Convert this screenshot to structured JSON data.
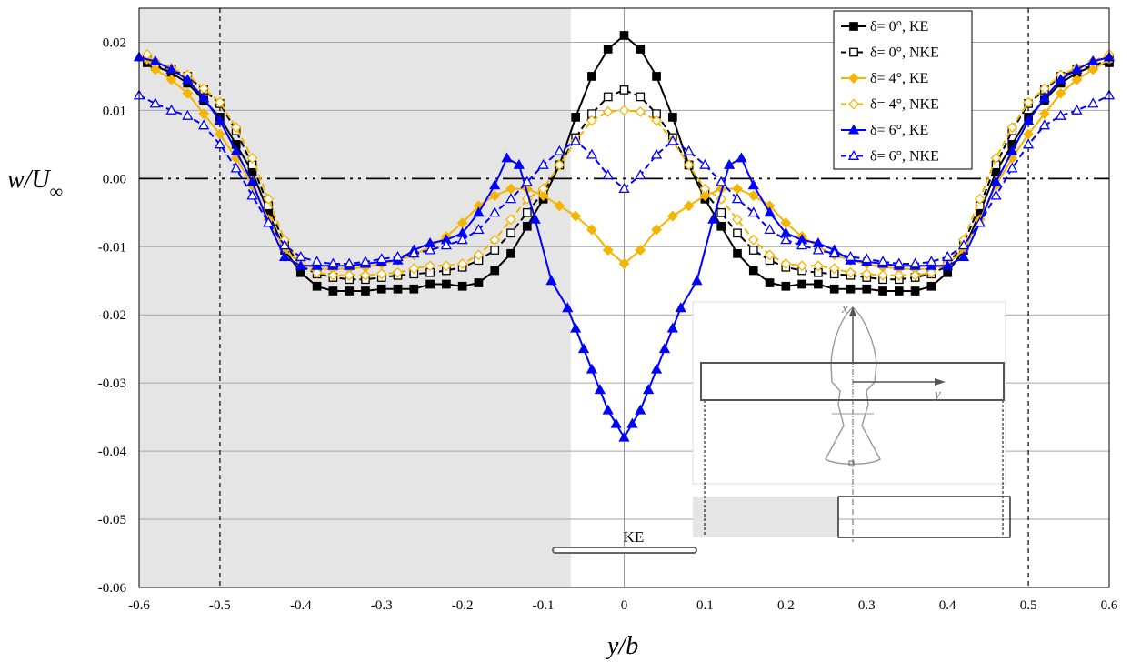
{
  "chart_data": {
    "type": "line",
    "xlabel": "y/b",
    "ylabel": "w/U∞",
    "xlim": [
      -0.6,
      0.6
    ],
    "ylim": [
      -0.06,
      0.025
    ],
    "x_ticks": [
      "-0.6",
      "-0.5",
      "-0.4",
      "-0.3",
      "-0.2",
      "-0.1",
      "0",
      "0.1",
      "0.2",
      "0.3",
      "0.4",
      "0.5",
      "0.6"
    ],
    "y_ticks": [
      "0.02",
      "0.01",
      "0.00",
      "-0.01",
      "-0.02",
      "-0.03",
      "-0.04",
      "-0.05",
      "-0.06"
    ],
    "grid": "horizontal",
    "legend_position": "top-right",
    "shaded_region": [
      -0.6,
      -0.066
    ],
    "vertical_lines": [
      -0.5,
      0.5
    ],
    "annotation": "KE",
    "inset_axis_labels": [
      "x",
      "y"
    ],
    "series": [
      {
        "name": "δ= 0°, KE",
        "color": "#000000",
        "line_style": "solid",
        "marker": "filled-square",
        "x": [
          -0.59,
          -0.58,
          -0.56,
          -0.54,
          -0.52,
          -0.5,
          -0.48,
          -0.46,
          -0.44,
          -0.42,
          -0.4,
          -0.38,
          -0.36,
          -0.34,
          -0.32,
          -0.3,
          -0.28,
          -0.26,
          -0.24,
          -0.22,
          -0.2,
          -0.18,
          -0.16,
          -0.14,
          -0.12,
          -0.1,
          -0.08,
          -0.06,
          -0.04,
          -0.02,
          0,
          0.02,
          0.04,
          0.06,
          0.08,
          0.1,
          0.12,
          0.14,
          0.16,
          0.18,
          0.2,
          0.22,
          0.24,
          0.26,
          0.28,
          0.3,
          0.32,
          0.34,
          0.36,
          0.38,
          0.4,
          0.42,
          0.44,
          0.46,
          0.48,
          0.5,
          0.52,
          0.54,
          0.56,
          0.58,
          0.6
        ],
        "y": [
          0.017,
          0.0165,
          0.0155,
          0.014,
          0.0115,
          0.009,
          0.005,
          0.001,
          -0.005,
          -0.0105,
          -0.0138,
          -0.0158,
          -0.0165,
          -0.0165,
          -0.0165,
          -0.0162,
          -0.0162,
          -0.0162,
          -0.0155,
          -0.0155,
          -0.0158,
          -0.0153,
          -0.0135,
          -0.011,
          -0.007,
          -0.003,
          0.002,
          0.009,
          0.015,
          0.019,
          0.021,
          0.019,
          0.015,
          0.009,
          0.002,
          -0.003,
          -0.007,
          -0.011,
          -0.0135,
          -0.0153,
          -0.0158,
          -0.0155,
          -0.0155,
          -0.0162,
          -0.0162,
          -0.0162,
          -0.0165,
          -0.0165,
          -0.0165,
          -0.0158,
          -0.0138,
          -0.0105,
          -0.005,
          0.001,
          0.005,
          0.009,
          0.0115,
          0.014,
          0.0155,
          0.0165,
          0.017
        ]
      },
      {
        "name": "δ= 0°, NKE",
        "color": "#000000",
        "line_style": "dashed",
        "marker": "open-square",
        "x": [
          -0.59,
          -0.58,
          -0.56,
          -0.54,
          -0.52,
          -0.5,
          -0.48,
          -0.46,
          -0.44,
          -0.42,
          -0.4,
          -0.38,
          -0.36,
          -0.34,
          -0.32,
          -0.3,
          -0.28,
          -0.26,
          -0.24,
          -0.22,
          -0.2,
          -0.18,
          -0.16,
          -0.14,
          -0.12,
          -0.1,
          -0.08,
          -0.06,
          -0.04,
          -0.02,
          0,
          0.02,
          0.04,
          0.06,
          0.08,
          0.1,
          0.12,
          0.14,
          0.16,
          0.18,
          0.2,
          0.22,
          0.24,
          0.26,
          0.28,
          0.3,
          0.32,
          0.34,
          0.36,
          0.38,
          0.4,
          0.42,
          0.44,
          0.46,
          0.48,
          0.5,
          0.52,
          0.54,
          0.56,
          0.58,
          0.6
        ],
        "y": [
          0.0175,
          0.0165,
          0.016,
          0.015,
          0.013,
          0.011,
          0.007,
          0.002,
          -0.004,
          -0.0095,
          -0.0128,
          -0.014,
          -0.0145,
          -0.0148,
          -0.0148,
          -0.0145,
          -0.0142,
          -0.014,
          -0.0138,
          -0.0135,
          -0.013,
          -0.012,
          -0.0105,
          -0.008,
          -0.005,
          -0.002,
          0.002,
          0.006,
          0.0095,
          0.012,
          0.013,
          0.012,
          0.0095,
          0.006,
          0.002,
          -0.002,
          -0.005,
          -0.008,
          -0.0105,
          -0.012,
          -0.013,
          -0.0135,
          -0.0138,
          -0.014,
          -0.0142,
          -0.0145,
          -0.0148,
          -0.0148,
          -0.0145,
          -0.014,
          -0.0128,
          -0.0095,
          -0.004,
          0.002,
          0.007,
          0.011,
          0.013,
          0.015,
          0.016,
          0.0165,
          0.0175
        ]
      },
      {
        "name": "δ= 4°, KE",
        "color": "#f4b400",
        "line_style": "solid",
        "marker": "filled-diamond",
        "x": [
          -0.59,
          -0.58,
          -0.56,
          -0.54,
          -0.52,
          -0.5,
          -0.48,
          -0.46,
          -0.44,
          -0.42,
          -0.4,
          -0.38,
          -0.36,
          -0.34,
          -0.32,
          -0.3,
          -0.28,
          -0.26,
          -0.24,
          -0.22,
          -0.2,
          -0.18,
          -0.16,
          -0.14,
          -0.12,
          -0.1,
          -0.08,
          -0.06,
          -0.04,
          -0.02,
          0,
          0.02,
          0.04,
          0.06,
          0.08,
          0.1,
          0.12,
          0.14,
          0.16,
          0.18,
          0.2,
          0.22,
          0.24,
          0.26,
          0.28,
          0.3,
          0.32,
          0.34,
          0.36,
          0.38,
          0.4,
          0.42,
          0.44,
          0.46,
          0.48,
          0.5,
          0.52,
          0.54,
          0.56,
          0.58,
          0.6
        ],
        "y": [
          0.0175,
          0.016,
          0.0145,
          0.0125,
          0.0095,
          0.0065,
          0.003,
          -0.001,
          -0.006,
          -0.0105,
          -0.0125,
          -0.0132,
          -0.0133,
          -0.0132,
          -0.013,
          -0.0125,
          -0.012,
          -0.0112,
          -0.01,
          -0.0085,
          -0.0065,
          -0.004,
          -0.0025,
          -0.0015,
          -0.0015,
          -0.0025,
          -0.004,
          -0.0055,
          -0.0075,
          -0.0105,
          -0.0125,
          -0.0105,
          -0.0075,
          -0.0055,
          -0.004,
          -0.0025,
          -0.0015,
          -0.0015,
          -0.0025,
          -0.004,
          -0.0065,
          -0.0085,
          -0.01,
          -0.0112,
          -0.012,
          -0.0125,
          -0.013,
          -0.0132,
          -0.0133,
          -0.0132,
          -0.0125,
          -0.0105,
          -0.006,
          -0.001,
          0.003,
          0.0065,
          0.0095,
          0.0125,
          0.0145,
          0.016,
          0.0175
        ]
      },
      {
        "name": "δ= 4°, NKE",
        "color": "#f4b400",
        "line_style": "dashed",
        "marker": "open-diamond",
        "x": [
          -0.59,
          -0.58,
          -0.56,
          -0.54,
          -0.52,
          -0.5,
          -0.48,
          -0.46,
          -0.44,
          -0.42,
          -0.4,
          -0.38,
          -0.36,
          -0.34,
          -0.32,
          -0.3,
          -0.28,
          -0.26,
          -0.24,
          -0.22,
          -0.2,
          -0.18,
          -0.16,
          -0.14,
          -0.12,
          -0.1,
          -0.08,
          -0.06,
          -0.04,
          -0.02,
          0,
          0.02,
          0.04,
          0.06,
          0.08,
          0.1,
          0.12,
          0.14,
          0.16,
          0.18,
          0.2,
          0.22,
          0.24,
          0.26,
          0.28,
          0.3,
          0.32,
          0.34,
          0.36,
          0.38,
          0.4,
          0.42,
          0.44,
          0.46,
          0.48,
          0.5,
          0.52,
          0.54,
          0.56,
          0.58,
          0.6
        ],
        "y": [
          0.0182,
          0.0172,
          0.0162,
          0.0152,
          0.0132,
          0.0112,
          0.0075,
          0.003,
          -0.003,
          -0.009,
          -0.0125,
          -0.0138,
          -0.0142,
          -0.0142,
          -0.0142,
          -0.014,
          -0.0138,
          -0.0132,
          -0.0128,
          -0.0128,
          -0.0125,
          -0.0112,
          -0.009,
          -0.006,
          -0.003,
          -0.0015,
          0.002,
          0.0055,
          0.0085,
          0.0098,
          0.01,
          0.0098,
          0.0085,
          0.0055,
          0.002,
          -0.0015,
          -0.003,
          -0.006,
          -0.009,
          -0.0112,
          -0.0125,
          -0.0128,
          -0.0128,
          -0.0132,
          -0.0138,
          -0.014,
          -0.0142,
          -0.0142,
          -0.0142,
          -0.0138,
          -0.0125,
          -0.009,
          -0.003,
          0.003,
          0.0075,
          0.0112,
          0.0132,
          0.0152,
          0.0162,
          0.0172,
          0.0182
        ]
      },
      {
        "name": "δ= 6°, KE",
        "color": "#0000ff",
        "line_style": "solid",
        "marker": "filled-triangle",
        "x": [
          -0.6,
          -0.58,
          -0.56,
          -0.54,
          -0.52,
          -0.5,
          -0.48,
          -0.46,
          -0.44,
          -0.42,
          -0.4,
          -0.38,
          -0.36,
          -0.34,
          -0.32,
          -0.3,
          -0.28,
          -0.26,
          -0.24,
          -0.22,
          -0.2,
          -0.18,
          -0.16,
          -0.145,
          -0.13,
          -0.11,
          -0.09,
          -0.07,
          -0.06,
          -0.05,
          -0.04,
          -0.03,
          -0.02,
          -0.01,
          0,
          0.01,
          0.02,
          0.03,
          0.04,
          0.05,
          0.06,
          0.07,
          0.09,
          0.11,
          0.13,
          0.145,
          0.16,
          0.18,
          0.2,
          0.22,
          0.24,
          0.26,
          0.28,
          0.3,
          0.32,
          0.34,
          0.36,
          0.38,
          0.4,
          0.42,
          0.44,
          0.46,
          0.48,
          0.5,
          0.52,
          0.54,
          0.56,
          0.58,
          0.6
        ],
        "y": [
          0.0178,
          0.0172,
          0.016,
          0.0145,
          0.0118,
          0.0085,
          0.004,
          -0.0005,
          -0.0065,
          -0.0115,
          -0.0128,
          -0.0128,
          -0.0128,
          -0.0128,
          -0.0125,
          -0.0122,
          -0.012,
          -0.0105,
          -0.0095,
          -0.009,
          -0.008,
          -0.005,
          -0.001,
          0.003,
          0.002,
          -0.006,
          -0.015,
          -0.019,
          -0.022,
          -0.025,
          -0.028,
          -0.031,
          -0.034,
          -0.036,
          -0.038,
          -0.036,
          -0.034,
          -0.031,
          -0.028,
          -0.025,
          -0.022,
          -0.019,
          -0.015,
          -0.006,
          0.002,
          0.003,
          -0.001,
          -0.005,
          -0.008,
          -0.009,
          -0.0095,
          -0.0105,
          -0.012,
          -0.0122,
          -0.0125,
          -0.0128,
          -0.0128,
          -0.0128,
          -0.0128,
          -0.0115,
          -0.0065,
          -0.0005,
          0.004,
          0.0085,
          0.0118,
          0.0145,
          0.016,
          0.0172,
          0.0178
        ]
      },
      {
        "name": "δ= 6°, NKE",
        "color": "#0000ff",
        "line_style": "dashed",
        "marker": "open-triangle",
        "x": [
          -0.6,
          -0.58,
          -0.56,
          -0.54,
          -0.52,
          -0.5,
          -0.48,
          -0.46,
          -0.44,
          -0.42,
          -0.4,
          -0.38,
          -0.36,
          -0.34,
          -0.32,
          -0.3,
          -0.28,
          -0.26,
          -0.24,
          -0.22,
          -0.2,
          -0.18,
          -0.16,
          -0.14,
          -0.12,
          -0.1,
          -0.08,
          -0.06,
          -0.04,
          -0.02,
          0,
          0.02,
          0.04,
          0.06,
          0.08,
          0.1,
          0.12,
          0.14,
          0.16,
          0.18,
          0.2,
          0.22,
          0.24,
          0.26,
          0.28,
          0.3,
          0.32,
          0.34,
          0.36,
          0.38,
          0.4,
          0.42,
          0.44,
          0.46,
          0.48,
          0.5,
          0.52,
          0.54,
          0.56,
          0.58,
          0.6
        ],
        "y": [
          0.0122,
          0.011,
          0.01,
          0.0092,
          0.0078,
          0.005,
          0.0015,
          -0.0025,
          -0.0065,
          -0.0098,
          -0.0115,
          -0.0122,
          -0.0125,
          -0.0125,
          -0.0122,
          -0.0118,
          -0.0115,
          -0.011,
          -0.0105,
          -0.0098,
          -0.009,
          -0.0075,
          -0.005,
          -0.003,
          -0.0005,
          0.002,
          0.004,
          0.0055,
          0.0035,
          0.0005,
          -0.0015,
          0.0005,
          0.0035,
          0.0055,
          0.004,
          0.002,
          -0.0005,
          -0.003,
          -0.005,
          -0.0075,
          -0.009,
          -0.0098,
          -0.0105,
          -0.011,
          -0.0115,
          -0.0118,
          -0.0122,
          -0.0125,
          -0.0125,
          -0.0122,
          -0.0115,
          -0.0098,
          -0.0065,
          -0.0025,
          0.0015,
          0.005,
          0.0078,
          0.0092,
          0.01,
          0.011,
          0.0122
        ]
      }
    ]
  }
}
